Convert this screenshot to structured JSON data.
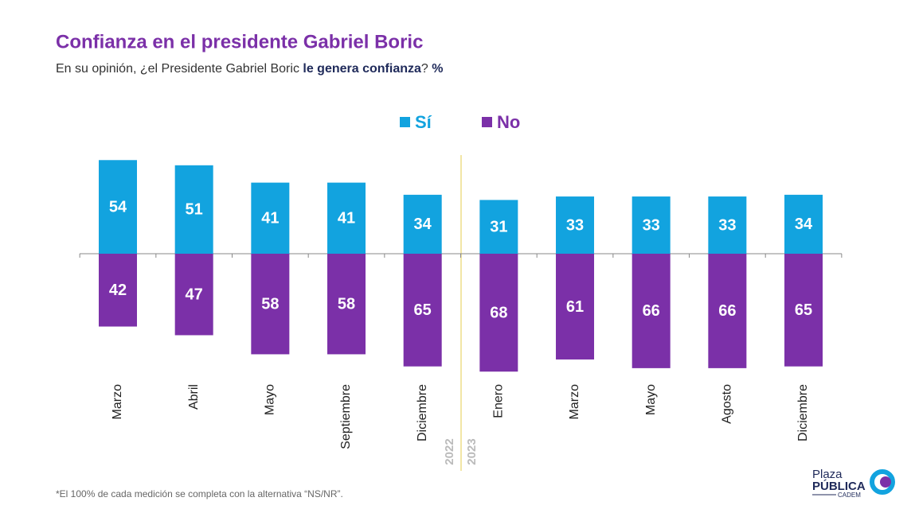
{
  "chart_data": {
    "type": "diverging_bar",
    "title": "Confianza en el presidente Gabriel Boric",
    "subtitle": [
      "En su opinión, ¿el Presidente Gabriel Boric ",
      "le genera confianza",
      "? ",
      "%"
    ],
    "categories": [
      "Marzo",
      "Abril",
      "Mayo",
      "Septiembre",
      "Diciembre",
      "Enero",
      "Marzo",
      "Mayo",
      "Agosto",
      "Diciembre"
    ],
    "series": [
      {
        "name": "Sí",
        "color": "#12a3df",
        "values": [
          54,
          51,
          41,
          41,
          34,
          31,
          33,
          33,
          33,
          34
        ]
      },
      {
        "name": "No",
        "color": "#7b30a8",
        "values": [
          42,
          47,
          58,
          58,
          65,
          68,
          61,
          66,
          66,
          65
        ]
      }
    ],
    "year_labels": [
      "2022",
      "2023"
    ],
    "footnote": "*El 100% de cada medición se completa con la alternativa “NS/NR”.",
    "logo": [
      "Plaza",
      "PÚBLICA",
      "CADEM"
    ]
  }
}
